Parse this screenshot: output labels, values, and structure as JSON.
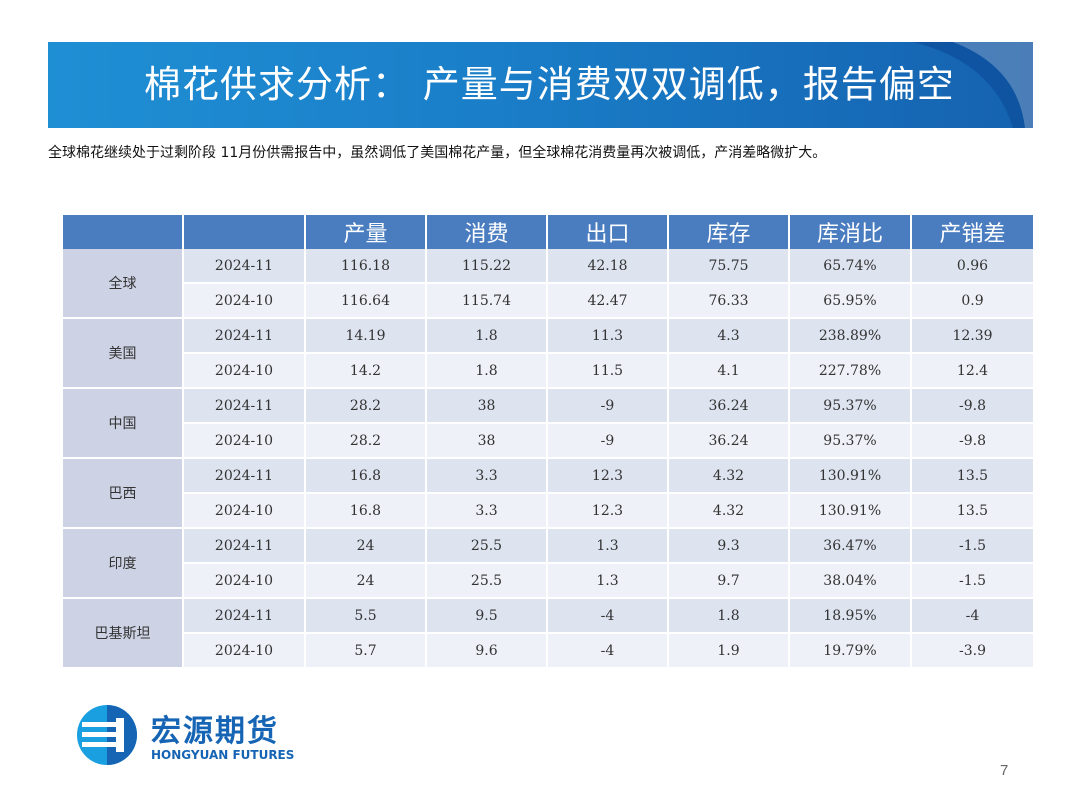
{
  "title": "棉花供求分析： 产量与消费双双调低，报告偏空",
  "intro": "全球棉花继续处于过剩阶段 11月份供需报告中，虽然调低了美国棉花产量，但全球棉花消费量再次被调低，产消差略微扩大。",
  "table": {
    "headers": [
      "",
      "",
      "产量",
      "消费",
      "出口",
      "库存",
      "库消比",
      "产销差"
    ],
    "groups": [
      {
        "region": "全球",
        "rows": [
          {
            "date": "2024-11",
            "values": [
              "116.18",
              "115.22",
              "42.18",
              "75.75",
              "65.74%",
              "0.96"
            ]
          },
          {
            "date": "2024-10",
            "values": [
              "116.64",
              "115.74",
              "42.47",
              "76.33",
              "65.95%",
              "0.9"
            ]
          }
        ]
      },
      {
        "region": "美国",
        "rows": [
          {
            "date": "2024-11",
            "values": [
              "14.19",
              "1.8",
              "11.3",
              "4.3",
              "238.89%",
              "12.39"
            ]
          },
          {
            "date": "2024-10",
            "values": [
              "14.2",
              "1.8",
              "11.5",
              "4.1",
              "227.78%",
              "12.4"
            ]
          }
        ]
      },
      {
        "region": "中国",
        "rows": [
          {
            "date": "2024-11",
            "values": [
              "28.2",
              "38",
              "-9",
              "36.24",
              "95.37%",
              "-9.8"
            ]
          },
          {
            "date": "2024-10",
            "values": [
              "28.2",
              "38",
              "-9",
              "36.24",
              "95.37%",
              "-9.8"
            ]
          }
        ]
      },
      {
        "region": "巴西",
        "rows": [
          {
            "date": "2024-11",
            "values": [
              "16.8",
              "3.3",
              "12.3",
              "4.32",
              "130.91%",
              "13.5"
            ]
          },
          {
            "date": "2024-10",
            "values": [
              "16.8",
              "3.3",
              "12.3",
              "4.32",
              "130.91%",
              "13.5"
            ]
          }
        ]
      },
      {
        "region": "印度",
        "rows": [
          {
            "date": "2024-11",
            "values": [
              "24",
              "25.5",
              "1.3",
              "9.3",
              "36.47%",
              "-1.5"
            ]
          },
          {
            "date": "2024-10",
            "values": [
              "24",
              "25.5",
              "1.3",
              "9.7",
              "38.04%",
              "-1.5"
            ]
          }
        ]
      },
      {
        "region": "巴基斯坦",
        "rows": [
          {
            "date": "2024-11",
            "values": [
              "5.5",
              "9.5",
              "-4",
              "1.8",
              "18.95%",
              "-4"
            ]
          },
          {
            "date": "2024-10",
            "values": [
              "5.7",
              "9.6",
              "-4",
              "1.9",
              "19.79%",
              "-3.9"
            ]
          }
        ]
      }
    ]
  },
  "logo": {
    "cn": "宏源期货",
    "en": "HONGYUAN FUTURES"
  },
  "page_number": "7",
  "colors": {
    "title_bar": "#1a7ec8",
    "header": "#4a7cc0",
    "row_dark": "#dde3ef",
    "row_light": "#eef1f7",
    "brand": "#1665b5"
  }
}
